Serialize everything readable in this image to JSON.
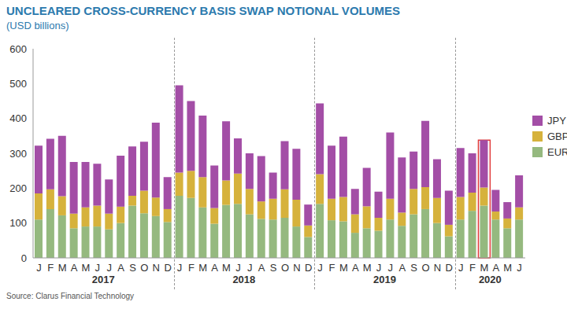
{
  "chart_data": {
    "type": "bar",
    "title": "UNCLEARED CROSS-CURRENCY BASIS SWAP NOTIONAL VOLUMES",
    "subtitle": "(USD billions)",
    "source": "Source: Clarus Financial Technology",
    "categories": [
      "J",
      "F",
      "M",
      "A",
      "M",
      "J",
      "J",
      "A",
      "S",
      "O",
      "N",
      "D",
      "J",
      "F",
      "M",
      "A",
      "M",
      "J",
      "J",
      "A",
      "S",
      "O",
      "N",
      "D",
      "J",
      "F",
      "M",
      "A",
      "M",
      "J",
      "J",
      "A",
      "S",
      "O",
      "N",
      "D",
      "J",
      "F",
      "M",
      "A",
      "M",
      "J"
    ],
    "groups": [
      {
        "label": "2017",
        "size": 12
      },
      {
        "label": "2018",
        "size": 12
      },
      {
        "label": "2019",
        "size": 12
      },
      {
        "label": "2020",
        "size": 6
      }
    ],
    "highlight": {
      "group": "2020",
      "index": 2
    },
    "series": [
      {
        "name": "EUR",
        "color": "#95b97f",
        "values": [
          110,
          140,
          122,
          85,
          90,
          90,
          82,
          100,
          150,
          128,
          120,
          103,
          178,
          172,
          145,
          98,
          152,
          155,
          125,
          112,
          110,
          115,
          90,
          60,
          155,
          108,
          105,
          72,
          85,
          78,
          110,
          92,
          125,
          140,
          100,
          62,
          110,
          135,
          150,
          110,
          85,
          110
        ]
      },
      {
        "name": "GBP",
        "color": "#d6b23c",
        "values": [
          75,
          57,
          55,
          42,
          55,
          60,
          45,
          47,
          28,
          65,
          53,
          37,
          67,
          78,
          87,
          45,
          70,
          87,
          73,
          50,
          60,
          82,
          77,
          33,
          85,
          62,
          70,
          53,
          63,
          37,
          60,
          38,
          73,
          63,
          72,
          33,
          65,
          52,
          52,
          23,
          28,
          35
        ]
      },
      {
        "name": "JPY",
        "color": "#a34ea6",
        "values": [
          137,
          145,
          173,
          148,
          130,
          120,
          98,
          146,
          142,
          140,
          215,
          92,
          250,
          200,
          176,
          122,
          170,
          101,
          102,
          130,
          75,
          138,
          146,
          60,
          203,
          152,
          173,
          73,
          110,
          75,
          190,
          158,
          107,
          190,
          111,
          98,
          140,
          113,
          136,
          62,
          47,
          92
        ]
      }
    ],
    "stacked": true,
    "grid": false,
    "legend": "right",
    "ylim": [
      0,
      600
    ],
    "yticks": [
      0,
      100,
      200,
      300,
      400,
      500,
      600
    ]
  }
}
